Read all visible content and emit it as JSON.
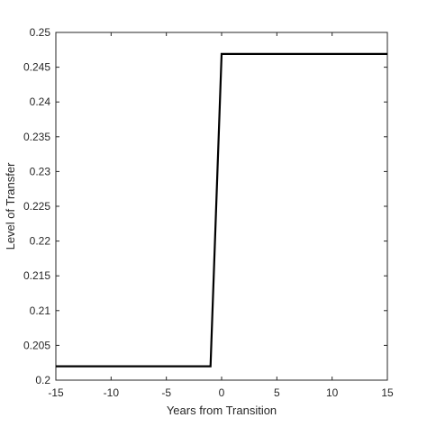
{
  "chart_data": {
    "type": "line",
    "title": "",
    "xlabel": "Years from Transition",
    "ylabel": "Level of Transfer",
    "xlim": [
      -15,
      15
    ],
    "ylim": [
      0.2,
      0.25
    ],
    "x_ticks": [
      -15,
      -10,
      -5,
      0,
      5,
      10,
      15
    ],
    "x_tick_labels": [
      "-15",
      "-10",
      "-5",
      "0",
      "5",
      "10",
      "15"
    ],
    "y_ticks": [
      0.2,
      0.205,
      0.21,
      0.215,
      0.22,
      0.225,
      0.23,
      0.235,
      0.24,
      0.245,
      0.25
    ],
    "y_tick_labels": [
      "0.2",
      "0.205",
      "0.21",
      "0.215",
      "0.22",
      "0.225",
      "0.23",
      "0.235",
      "0.24",
      "0.245",
      "0.25"
    ],
    "grid": false,
    "box": true,
    "series": [
      {
        "color": "#000000",
        "x": [
          -15,
          -1,
          0,
          15
        ],
        "y": [
          0.202,
          0.202,
          0.2469,
          0.2469
        ]
      }
    ]
  }
}
